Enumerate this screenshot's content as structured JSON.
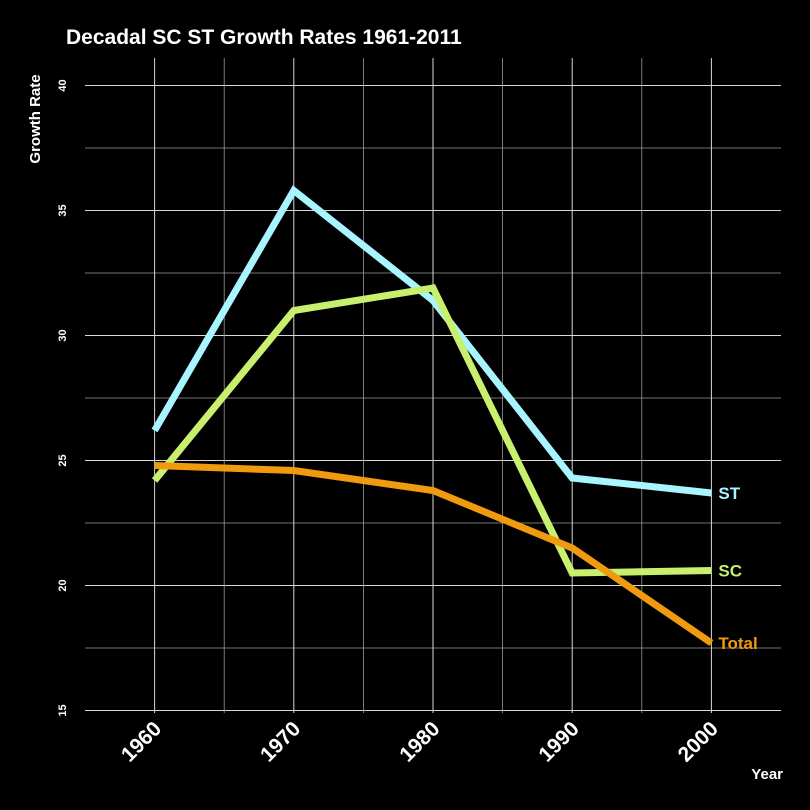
{
  "chart_data": {
    "type": "line",
    "title": "Decadal SC ST Growth Rates 1961-2011",
    "xlabel": "Year",
    "ylabel": "Growth Rate",
    "x": [
      1961,
      1971,
      1981,
      1991,
      2001
    ],
    "x_ticks": [
      1960,
      1970,
      1980,
      1990,
      2000
    ],
    "y_ticks": [
      15,
      20,
      25,
      30,
      35,
      40
    ],
    "xlim": [
      1956,
      2006
    ],
    "ylim": [
      14.9,
      41.1
    ],
    "grid": true,
    "series": [
      {
        "name": "ST",
        "color": "#a8f4ff",
        "values": [
          26.2,
          35.8,
          31.4,
          24.3,
          23.7
        ]
      },
      {
        "name": "SC",
        "color": "#c8ef6e",
        "values": [
          24.2,
          31.0,
          31.9,
          20.5,
          20.6
        ]
      },
      {
        "name": "Total",
        "color": "#f09a0f",
        "values": [
          24.8,
          24.6,
          23.8,
          21.5,
          17.7
        ]
      }
    ]
  }
}
